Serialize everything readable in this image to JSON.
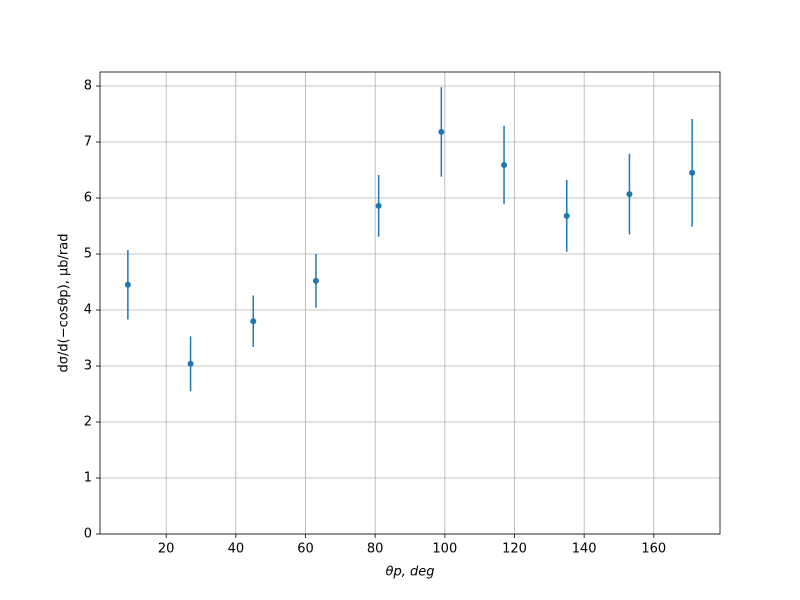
{
  "chart_data": {
    "type": "errorbar",
    "x": [
      9,
      27,
      45,
      63,
      81,
      99,
      117,
      135,
      153,
      171
    ],
    "values": [
      4.45,
      3.04,
      3.8,
      4.52,
      5.86,
      7.18,
      6.59,
      5.68,
      6.07,
      6.45
    ],
    "errors": [
      0.62,
      0.49,
      0.46,
      0.48,
      0.55,
      0.8,
      0.7,
      0.64,
      0.72,
      0.96
    ],
    "color": "#1f77b4",
    "xlim": [
      1,
      179
    ],
    "ylim": [
      0,
      8.25
    ],
    "xticks": [
      20,
      40,
      60,
      80,
      100,
      120,
      140,
      160
    ],
    "yticks": [
      0,
      1,
      2,
      3,
      4,
      5,
      6,
      7,
      8
    ],
    "grid": true,
    "xlabel": "θp, deg",
    "ylabel": "dσ/d(−cosθp), μb/rad"
  }
}
